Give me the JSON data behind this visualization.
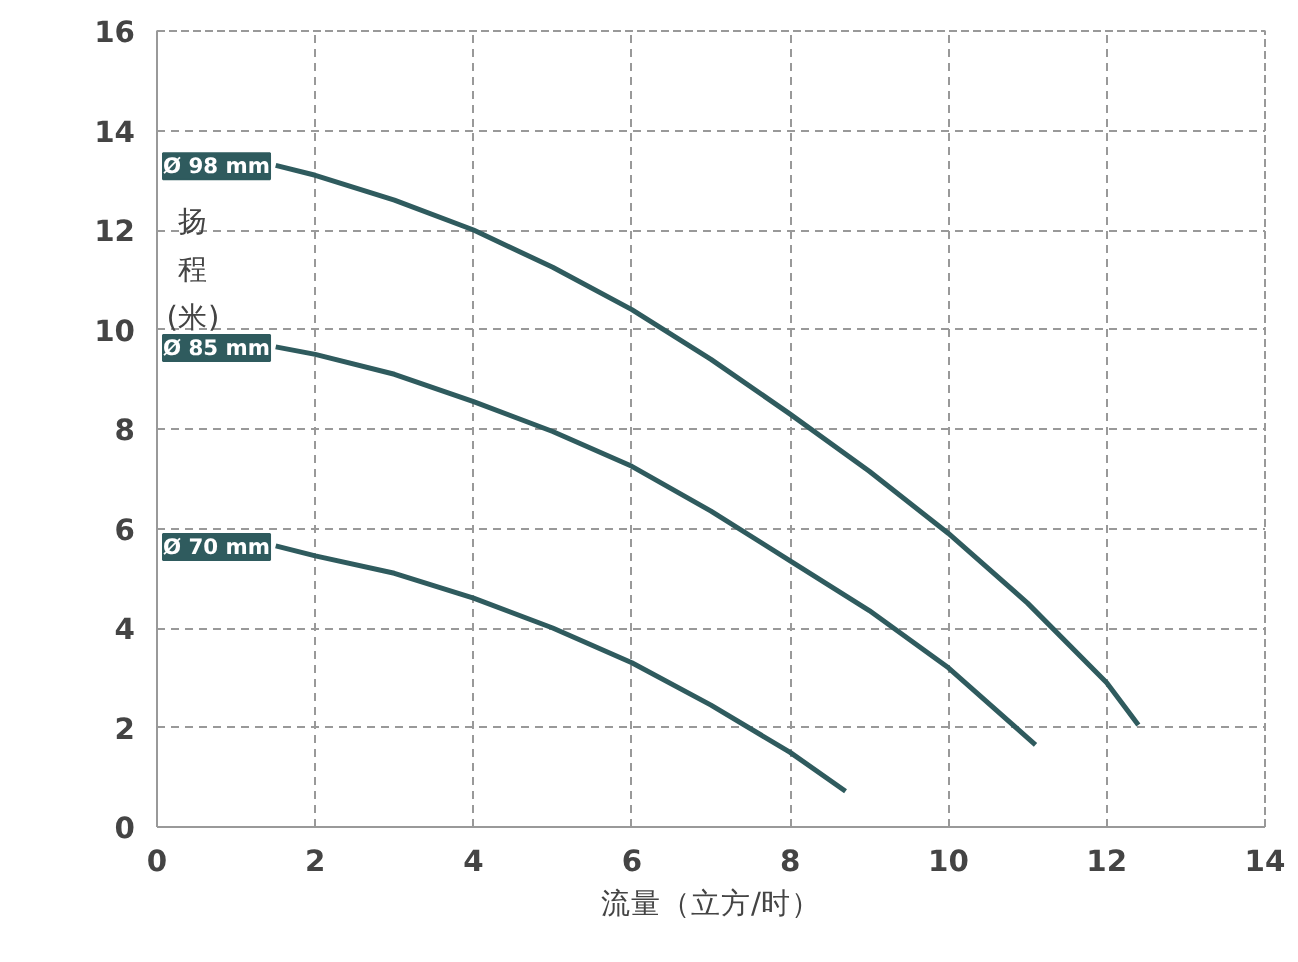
{
  "chart_data": {
    "type": "line",
    "xlabel": "流量（立方/时）",
    "ylabel": "扬程(米)",
    "xlim": [
      0,
      14
    ],
    "ylim": [
      0,
      16
    ],
    "xticks": [
      0,
      2,
      4,
      6,
      8,
      10,
      12,
      14
    ],
    "yticks": [
      0,
      2,
      4,
      6,
      8,
      10,
      12,
      14,
      16
    ],
    "grid": true,
    "marker": "none",
    "line_style": "solid",
    "series": [
      {
        "name": "Ø 98 mm",
        "color": "#2f5b5e",
        "x": [
          1.5,
          2,
          3,
          4,
          5,
          6,
          7,
          8,
          9,
          10,
          11,
          12,
          12.4
        ],
        "values": [
          13.3,
          13.1,
          12.6,
          12.0,
          11.25,
          10.4,
          9.4,
          8.3,
          7.15,
          5.9,
          4.5,
          2.9,
          2.05
        ]
      },
      {
        "name": "Ø 85 mm",
        "color": "#2f5b5e",
        "x": [
          1.5,
          2,
          3,
          4,
          5,
          6,
          7,
          8,
          9,
          10,
          11.1
        ],
        "values": [
          9.65,
          9.5,
          9.1,
          8.55,
          7.95,
          7.25,
          6.35,
          5.35,
          4.35,
          3.2,
          1.65
        ]
      },
      {
        "name": "Ø 70 mm",
        "color": "#2f5b5e",
        "x": [
          1.5,
          2,
          3,
          4,
          5,
          6,
          7,
          8,
          8.7
        ],
        "values": [
          5.65,
          5.45,
          5.1,
          4.6,
          4.0,
          3.3,
          2.45,
          1.5,
          0.72
        ]
      }
    ]
  }
}
